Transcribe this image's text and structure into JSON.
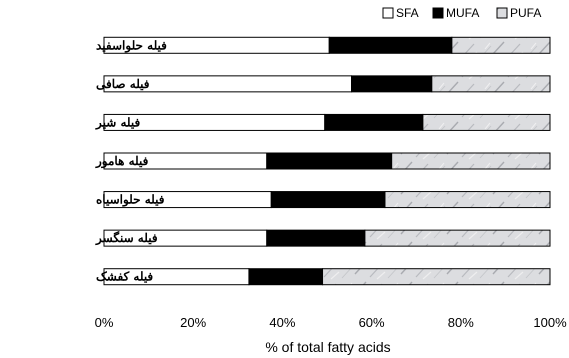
{
  "chart_data": {
    "type": "bar",
    "orientation": "horizontal",
    "stacked": "percent",
    "categories": [
      "فیله حلواسفید",
      "فیله صافی",
      "فیله شیر",
      "فیله هامور",
      "فیله حلواسیاه",
      "فیله سنگسر",
      "فیله کفشک"
    ],
    "series": [
      {
        "name": "SFA",
        "values": [
          50.5,
          55.5,
          49.5,
          36.5,
          37.5,
          36.5,
          32.5
        ],
        "color": "#ffffff"
      },
      {
        "name": "MUFA",
        "values": [
          27.5,
          18.0,
          22.0,
          28.0,
          25.5,
          22.0,
          16.5
        ],
        "color": "#000000"
      },
      {
        "name": "PUFA",
        "values": [
          22.0,
          26.5,
          28.5,
          35.5,
          37.0,
          41.5,
          51.0
        ],
        "color": "#d9dadc"
      }
    ],
    "xlabel": "% of total fatty acids",
    "ylabel": "",
    "xlim": [
      0,
      100
    ],
    "x_ticks": [
      "0%",
      "20%",
      "40%",
      "60%",
      "80%",
      "100%"
    ],
    "legend_position": "top-right",
    "grid": false
  }
}
